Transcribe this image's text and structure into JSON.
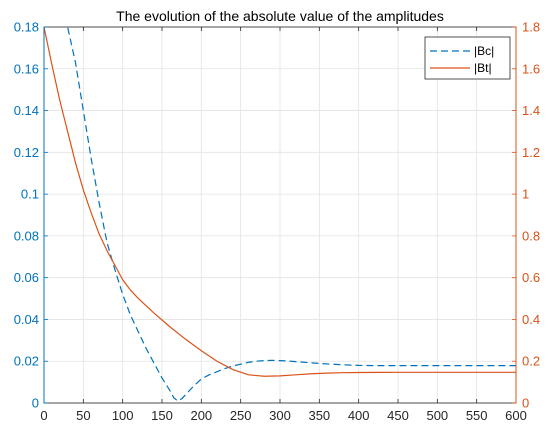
{
  "chart_data": {
    "type": "line",
    "title": "The evolution of the absolute value of the amplitudes",
    "xlabel": "",
    "ylabel_left": "",
    "ylabel_right": "",
    "xlim": [
      0,
      600
    ],
    "ylim_left": [
      0,
      0.18
    ],
    "ylim_right": [
      0,
      1.8
    ],
    "x_ticks": [
      0,
      50,
      100,
      150,
      200,
      250,
      300,
      350,
      400,
      450,
      500,
      550,
      600
    ],
    "y_left_ticks": [
      0,
      0.02,
      0.04,
      0.06,
      0.08,
      0.1,
      0.12,
      0.14,
      0.16,
      0.18
    ],
    "y_right_ticks": [
      0,
      0.2,
      0.4,
      0.6,
      0.8,
      1,
      1.2,
      1.4,
      1.6,
      1.8
    ],
    "grid": true,
    "legend_position": "top-right",
    "series": [
      {
        "name": "|Bc|",
        "axis": "left",
        "color": "#0072BD",
        "style": "dashed",
        "x": [
          25,
          30,
          40,
          50,
          60,
          70,
          80,
          90,
          100,
          110,
          120,
          130,
          140,
          150,
          155,
          160,
          165,
          170,
          175,
          180,
          190,
          200,
          210,
          220,
          230,
          240,
          250,
          260,
          270,
          280,
          290,
          300,
          310,
          320,
          340,
          360,
          380,
          400,
          420,
          450,
          500,
          550,
          600
        ],
        "y": [
          0.19,
          0.18,
          0.163,
          0.14,
          0.117,
          0.096,
          0.077,
          0.064,
          0.052,
          0.042,
          0.034,
          0.026,
          0.019,
          0.012,
          0.009,
          0.006,
          0.0025,
          0.001,
          0.002,
          0.004,
          0.008,
          0.0115,
          0.0135,
          0.015,
          0.0165,
          0.0177,
          0.0186,
          0.0195,
          0.02,
          0.0203,
          0.0204,
          0.0203,
          0.0201,
          0.0198,
          0.0192,
          0.0187,
          0.0183,
          0.018,
          0.0179,
          0.0179,
          0.0179,
          0.0179,
          0.0179
        ]
      },
      {
        "name": "|Bt|",
        "axis": "right",
        "color": "#D95319",
        "style": "solid",
        "x": [
          0,
          10,
          20,
          30,
          40,
          50,
          60,
          70,
          80,
          90,
          100,
          110,
          120,
          140,
          160,
          180,
          200,
          220,
          240,
          260,
          280,
          300,
          320,
          340,
          360,
          380,
          400,
          450,
          500,
          550,
          600
        ],
        "y": [
          1.8,
          1.62,
          1.45,
          1.3,
          1.15,
          1.02,
          0.91,
          0.81,
          0.73,
          0.66,
          0.59,
          0.54,
          0.5,
          0.43,
          0.365,
          0.305,
          0.25,
          0.2,
          0.16,
          0.135,
          0.128,
          0.13,
          0.135,
          0.14,
          0.143,
          0.145,
          0.146,
          0.147,
          0.147,
          0.147,
          0.147
        ]
      }
    ]
  }
}
